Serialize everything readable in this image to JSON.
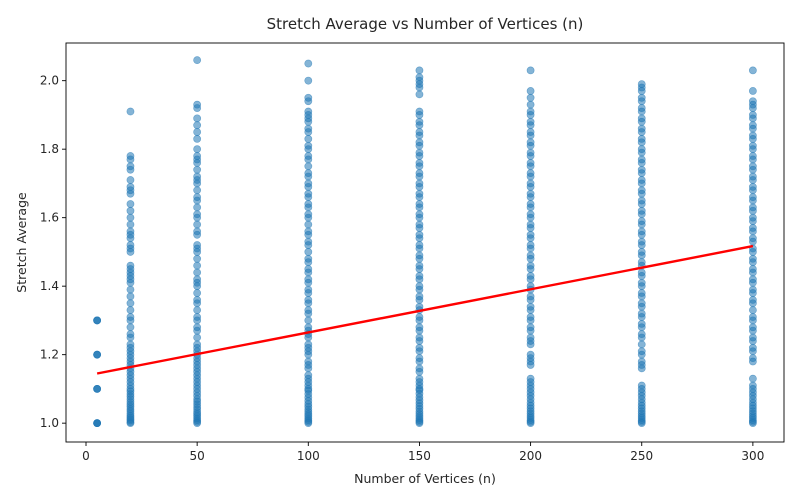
{
  "chart_data": {
    "type": "scatter",
    "title": "Stretch Average vs Number of Vertices (n)",
    "xlabel": "Number of Vertices (n)",
    "ylabel": "Stretch Average",
    "xlim": [
      -9,
      314
    ],
    "ylim": [
      0.945,
      2.11
    ],
    "xticks": [
      "0",
      "50",
      "100",
      "150",
      "200",
      "250",
      "300"
    ],
    "yticks": [
      "1.0",
      "1.2",
      "1.4",
      "1.6",
      "1.8",
      "2.0"
    ],
    "grid": false,
    "legend": "none",
    "point_color": "#1f77b4",
    "point_alpha": 0.55,
    "trend_color": "#ff0000",
    "columns": [
      {
        "x": 5,
        "y": [
          1.0,
          1.0,
          1.0,
          1.0,
          1.1,
          1.1,
          1.1,
          1.2,
          1.2,
          1.2,
          1.3,
          1.3,
          1.3
        ]
      },
      {
        "x": 20,
        "y": [
          1.0,
          1.003,
          1.008,
          1.012,
          1.017,
          1.022,
          1.028,
          1.035,
          1.041,
          1.048,
          1.055,
          1.062,
          1.07,
          1.078,
          1.085,
          1.093,
          1.1,
          1.11,
          1.12,
          1.13,
          1.14,
          1.15,
          1.16,
          1.17,
          1.18,
          1.19,
          1.2,
          1.21,
          1.22,
          1.23,
          1.25,
          1.26,
          1.28,
          1.3,
          1.31,
          1.33,
          1.35,
          1.37,
          1.39,
          1.41,
          1.42,
          1.43,
          1.44,
          1.45,
          1.46,
          1.5,
          1.51,
          1.52,
          1.54,
          1.55,
          1.56,
          1.58,
          1.6,
          1.62,
          1.64,
          1.67,
          1.68,
          1.69,
          1.71,
          1.74,
          1.75,
          1.77,
          1.78,
          1.91
        ]
      },
      {
        "x": 50,
        "y": [
          1.0,
          1.004,
          1.009,
          1.014,
          1.02,
          1.026,
          1.032,
          1.04,
          1.047,
          1.055,
          1.063,
          1.07,
          1.08,
          1.09,
          1.1,
          1.11,
          1.12,
          1.13,
          1.14,
          1.15,
          1.16,
          1.17,
          1.18,
          1.19,
          1.2,
          1.21,
          1.22,
          1.23,
          1.25,
          1.27,
          1.28,
          1.3,
          1.31,
          1.33,
          1.35,
          1.36,
          1.38,
          1.4,
          1.41,
          1.42,
          1.44,
          1.46,
          1.48,
          1.5,
          1.51,
          1.52,
          1.55,
          1.56,
          1.58,
          1.6,
          1.61,
          1.63,
          1.65,
          1.66,
          1.68,
          1.7,
          1.71,
          1.72,
          1.74,
          1.76,
          1.77,
          1.78,
          1.8,
          1.83,
          1.85,
          1.87,
          1.89,
          1.92,
          1.93,
          2.06
        ]
      },
      {
        "x": 100,
        "y": [
          1.0,
          1.004,
          1.009,
          1.014,
          1.02,
          1.026,
          1.033,
          1.04,
          1.048,
          1.056,
          1.065,
          1.075,
          1.085,
          1.095,
          1.1,
          1.11,
          1.12,
          1.13,
          1.14,
          1.16,
          1.17,
          1.18,
          1.2,
          1.21,
          1.22,
          1.23,
          1.25,
          1.26,
          1.27,
          1.28,
          1.3,
          1.32,
          1.33,
          1.35,
          1.36,
          1.38,
          1.39,
          1.41,
          1.42,
          1.44,
          1.45,
          1.47,
          1.48,
          1.5,
          1.52,
          1.53,
          1.55,
          1.56,
          1.58,
          1.6,
          1.61,
          1.63,
          1.64,
          1.66,
          1.67,
          1.69,
          1.7,
          1.72,
          1.73,
          1.75,
          1.77,
          1.78,
          1.8,
          1.81,
          1.83,
          1.85,
          1.86,
          1.88,
          1.89,
          1.9,
          1.91,
          1.94,
          1.95,
          2.0,
          2.05
        ]
      },
      {
        "x": 150,
        "y": [
          1.0,
          1.004,
          1.009,
          1.014,
          1.02,
          1.027,
          1.034,
          1.042,
          1.05,
          1.058,
          1.067,
          1.076,
          1.086,
          1.096,
          1.1,
          1.11,
          1.12,
          1.13,
          1.15,
          1.16,
          1.18,
          1.19,
          1.21,
          1.22,
          1.24,
          1.25,
          1.27,
          1.28,
          1.3,
          1.31,
          1.33,
          1.34,
          1.36,
          1.37,
          1.39,
          1.4,
          1.42,
          1.43,
          1.45,
          1.46,
          1.48,
          1.49,
          1.51,
          1.52,
          1.54,
          1.55,
          1.57,
          1.58,
          1.6,
          1.61,
          1.63,
          1.64,
          1.66,
          1.67,
          1.69,
          1.7,
          1.72,
          1.73,
          1.75,
          1.76,
          1.78,
          1.79,
          1.81,
          1.82,
          1.84,
          1.85,
          1.87,
          1.88,
          1.9,
          1.91,
          1.96,
          1.98,
          1.99,
          2.0,
          2.01,
          2.03
        ]
      },
      {
        "x": 200,
        "y": [
          1.0,
          1.004,
          1.009,
          1.015,
          1.021,
          1.028,
          1.035,
          1.043,
          1.051,
          1.06,
          1.07,
          1.08,
          1.09,
          1.1,
          1.11,
          1.12,
          1.13,
          1.17,
          1.18,
          1.19,
          1.2,
          1.23,
          1.24,
          1.25,
          1.27,
          1.28,
          1.3,
          1.31,
          1.33,
          1.34,
          1.36,
          1.37,
          1.39,
          1.4,
          1.42,
          1.43,
          1.45,
          1.46,
          1.48,
          1.49,
          1.51,
          1.52,
          1.54,
          1.55,
          1.57,
          1.58,
          1.6,
          1.61,
          1.63,
          1.64,
          1.66,
          1.67,
          1.69,
          1.7,
          1.72,
          1.73,
          1.75,
          1.76,
          1.78,
          1.79,
          1.81,
          1.82,
          1.84,
          1.85,
          1.87,
          1.88,
          1.9,
          1.91,
          1.93,
          1.95,
          1.97,
          2.03
        ]
      },
      {
        "x": 250,
        "y": [
          1.0,
          1.004,
          1.009,
          1.015,
          1.021,
          1.028,
          1.035,
          1.043,
          1.051,
          1.06,
          1.07,
          1.08,
          1.09,
          1.1,
          1.11,
          1.16,
          1.17,
          1.18,
          1.2,
          1.21,
          1.23,
          1.25,
          1.26,
          1.28,
          1.29,
          1.31,
          1.32,
          1.34,
          1.35,
          1.37,
          1.38,
          1.4,
          1.41,
          1.43,
          1.44,
          1.46,
          1.47,
          1.49,
          1.5,
          1.52,
          1.53,
          1.55,
          1.56,
          1.58,
          1.59,
          1.61,
          1.62,
          1.64,
          1.65,
          1.67,
          1.68,
          1.7,
          1.71,
          1.73,
          1.74,
          1.76,
          1.77,
          1.79,
          1.8,
          1.82,
          1.83,
          1.85,
          1.86,
          1.88,
          1.89,
          1.91,
          1.92,
          1.94,
          1.95,
          1.97,
          1.98,
          1.99
        ]
      },
      {
        "x": 300,
        "y": [
          1.0,
          1.004,
          1.009,
          1.015,
          1.021,
          1.028,
          1.035,
          1.043,
          1.051,
          1.06,
          1.07,
          1.08,
          1.09,
          1.1,
          1.11,
          1.13,
          1.18,
          1.19,
          1.21,
          1.22,
          1.24,
          1.25,
          1.27,
          1.28,
          1.3,
          1.31,
          1.33,
          1.35,
          1.36,
          1.38,
          1.39,
          1.41,
          1.42,
          1.44,
          1.45,
          1.47,
          1.48,
          1.5,
          1.51,
          1.53,
          1.54,
          1.56,
          1.57,
          1.59,
          1.6,
          1.62,
          1.63,
          1.65,
          1.66,
          1.68,
          1.69,
          1.71,
          1.72,
          1.74,
          1.75,
          1.77,
          1.78,
          1.8,
          1.81,
          1.83,
          1.84,
          1.86,
          1.87,
          1.89,
          1.9,
          1.92,
          1.93,
          1.94,
          1.97,
          2.03
        ]
      }
    ],
    "trendline": {
      "x": [
        5,
        300
      ],
      "y": [
        1.145,
        1.517
      ]
    }
  }
}
